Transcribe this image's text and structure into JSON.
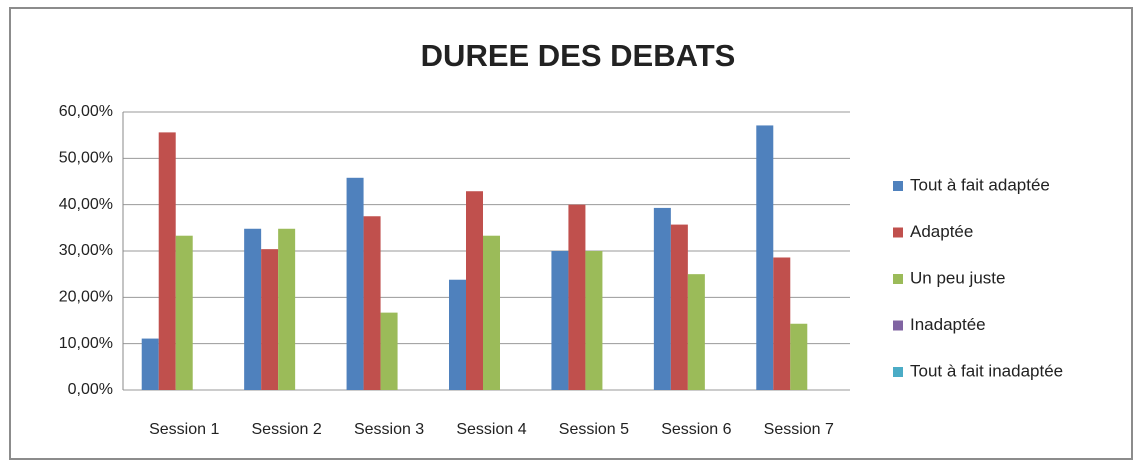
{
  "chart_data": {
    "type": "bar",
    "title": "DUREE DES DEBATS",
    "categories": [
      "Session 1",
      "Session 2",
      "Session 3",
      "Session 4",
      "Session 5",
      "Session 6",
      "Session 7"
    ],
    "series": [
      {
        "name": "Tout à fait adaptée",
        "color": "#4f81bd",
        "values": [
          11.1,
          34.8,
          45.8,
          23.8,
          30,
          39.3,
          57.1
        ]
      },
      {
        "name": "Adaptée",
        "color": "#c0504d",
        "values": [
          55.6,
          30.4,
          37.5,
          42.9,
          40,
          35.7,
          28.6
        ]
      },
      {
        "name": "Un peu juste",
        "color": "#9bbb59",
        "values": [
          33.3,
          34.8,
          16.7,
          33.3,
          30,
          25,
          14.3
        ]
      },
      {
        "name": "Inadaptée",
        "color": "#8064a2",
        "values": [
          0,
          0,
          0,
          0,
          0,
          0,
          0
        ]
      },
      {
        "name": "Tout à fait inadaptée",
        "color": "#4bacc6",
        "values": [
          0,
          0,
          0,
          0,
          0,
          0,
          0
        ]
      }
    ],
    "ylim": [
      0,
      60
    ],
    "yticks": [
      {
        "value": 0,
        "label": "0,00%"
      },
      {
        "value": 10,
        "label": "10,00%"
      },
      {
        "value": 20,
        "label": "20,00%"
      },
      {
        "value": 30,
        "label": "30,00%"
      },
      {
        "value": 40,
        "label": "40,00%"
      },
      {
        "value": 50,
        "label": "50,00%"
      },
      {
        "value": 60,
        "label": "60,00%"
      }
    ],
    "grid": true,
    "legend": "right"
  }
}
